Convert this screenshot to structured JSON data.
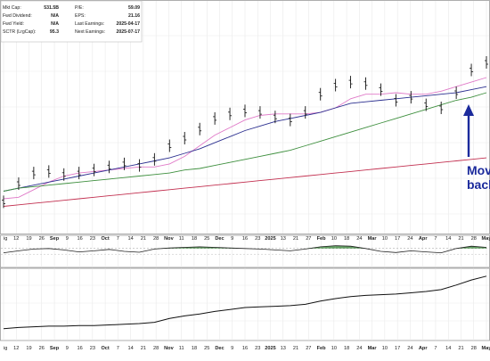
{
  "info": {
    "left": [
      {
        "label": "Mkt Cap:",
        "value": "531.5B"
      },
      {
        "label": "Fwd Dividend:",
        "value": "N/A"
      },
      {
        "label": "Fwd Yield:",
        "value": "N/A"
      },
      {
        "label": "SCTR (LrgCap):",
        "value": "95.3"
      }
    ],
    "right": [
      {
        "label": "P/E:",
        "value": "59.09"
      },
      {
        "label": "EPS:",
        "value": "21.16"
      },
      {
        "label": "Last Earnings:",
        "value": "2025-04-17"
      },
      {
        "label": "Next Earnings:",
        "value": "2025-07-17"
      }
    ]
  },
  "annotation": {
    "line1": "Mov",
    "line2": "back"
  },
  "chart_data": {
    "type": "line",
    "title": "",
    "panels": [
      "price",
      "indicator",
      "relative-strength"
    ],
    "x_tick_labels": [
      {
        "text": "ig",
        "bold": false
      },
      {
        "text": "12",
        "bold": false
      },
      {
        "text": "19",
        "bold": false
      },
      {
        "text": "26",
        "bold": false
      },
      {
        "text": "Sep",
        "bold": true
      },
      {
        "text": "9",
        "bold": false
      },
      {
        "text": "16",
        "bold": false
      },
      {
        "text": "23",
        "bold": false
      },
      {
        "text": "Oct",
        "bold": true
      },
      {
        "text": "7",
        "bold": false
      },
      {
        "text": "14",
        "bold": false
      },
      {
        "text": "21",
        "bold": false
      },
      {
        "text": "28",
        "bold": false
      },
      {
        "text": "Nov",
        "bold": true
      },
      {
        "text": "11",
        "bold": false
      },
      {
        "text": "18",
        "bold": false
      },
      {
        "text": "25",
        "bold": false
      },
      {
        "text": "Dec",
        "bold": true
      },
      {
        "text": "9",
        "bold": false
      },
      {
        "text": "16",
        "bold": false
      },
      {
        "text": "23",
        "bold": false
      },
      {
        "text": "2025",
        "bold": true
      },
      {
        "text": "13",
        "bold": false
      },
      {
        "text": "21",
        "bold": false
      },
      {
        "text": "27",
        "bold": false
      },
      {
        "text": "Feb",
        "bold": true
      },
      {
        "text": "10",
        "bold": false
      },
      {
        "text": "18",
        "bold": false
      },
      {
        "text": "24",
        "bold": false
      },
      {
        "text": "Mar",
        "bold": true
      },
      {
        "text": "10",
        "bold": false
      },
      {
        "text": "17",
        "bold": false
      },
      {
        "text": "24",
        "bold": false
      },
      {
        "text": "Apr",
        "bold": true
      },
      {
        "text": "7",
        "bold": false
      },
      {
        "text": "14",
        "bold": false
      },
      {
        "text": "21",
        "bold": false
      },
      {
        "text": "28",
        "bold": false
      },
      {
        "text": "May",
        "bold": true
      }
    ],
    "price_series": [
      {
        "name": "",
        "color": "#e07ac8",
        "role": "short-ma",
        "values": [
          10,
          11,
          16,
          21,
          25,
          27,
          28,
          29,
          30,
          31,
          31,
          33,
          38,
          45,
          52,
          57,
          62,
          65,
          66,
          66,
          66,
          67,
          70,
          76,
          79,
          79,
          80,
          79,
          79,
          81,
          84,
          87,
          90
        ]
      },
      {
        "name": "",
        "color": "#2b2f8f",
        "role": "mid-ma",
        "values": [
          15,
          17,
          19,
          21,
          23,
          25,
          27,
          29,
          31,
          33,
          35,
          37,
          40,
          43,
          47,
          51,
          55,
          58,
          61,
          63,
          65,
          67,
          70,
          73,
          74,
          75,
          76,
          77,
          78,
          79,
          80,
          82,
          84
        ]
      },
      {
        "name": "",
        "color": "#3e8f3e",
        "role": "long-ma",
        "values": [
          15,
          17,
          18,
          19,
          20,
          21,
          22,
          23,
          24,
          25,
          26,
          27,
          29,
          30,
          32,
          34,
          36,
          38,
          40,
          42,
          45,
          48,
          51,
          54,
          57,
          60,
          63,
          66,
          69,
          72,
          75,
          77,
          80
        ]
      },
      {
        "name": "",
        "color": "#c23050",
        "role": "longest-ma",
        "values": [
          5,
          6,
          7,
          8,
          9,
          10,
          11,
          12,
          13,
          14,
          15,
          16,
          17,
          18,
          19,
          20,
          21,
          22,
          23,
          24,
          25,
          26,
          27,
          28,
          29,
          30,
          31,
          32,
          33,
          34,
          35,
          36,
          37
        ]
      }
    ],
    "price_bars": [
      8,
      20,
      27,
      28,
      26,
      27,
      29,
      31,
      33,
      32,
      36,
      45,
      50,
      56,
      63,
      66,
      68,
      67,
      64,
      62,
      67,
      79,
      85,
      87,
      86,
      82,
      75,
      77,
      72,
      70,
      80,
      95,
      100
    ],
    "indicator_values": [
      45,
      52,
      58,
      60,
      55,
      48,
      52,
      57,
      50,
      47,
      58,
      62,
      64,
      66,
      64,
      62,
      60,
      58,
      55,
      52,
      58,
      66,
      70,
      68,
      60,
      50,
      46,
      52,
      48,
      45,
      60,
      68,
      64
    ],
    "relative_strength_values": [
      10,
      12,
      13,
      14,
      14,
      15,
      15,
      16,
      17,
      18,
      20,
      26,
      30,
      33,
      37,
      40,
      43,
      44,
      45,
      46,
      48,
      53,
      57,
      60,
      62,
      63,
      64,
      66,
      68,
      71,
      78,
      86,
      92
    ]
  }
}
